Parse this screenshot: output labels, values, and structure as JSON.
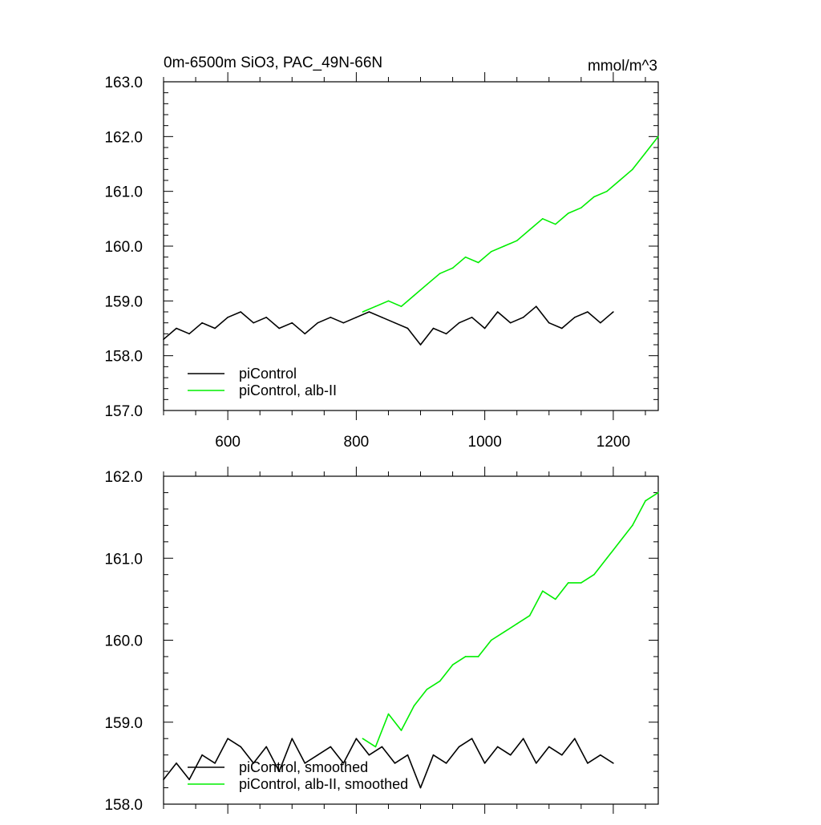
{
  "header": {
    "title": "0m-6500m SiO3, PAC_49N-66N",
    "units": "mmol/m^3"
  },
  "colors": {
    "control": "#000000",
    "experiment": "#00ee00",
    "axis": "#000000"
  },
  "chart_data": [
    {
      "type": "line",
      "panel": "top",
      "xlim": [
        500,
        1270
      ],
      "ylim": [
        157.0,
        163.0
      ],
      "xticks": [
        600,
        800,
        1000,
        1200
      ],
      "xtick_labels": [
        "600",
        "800",
        "1000",
        "1200"
      ],
      "yticks": [
        157.0,
        158.0,
        159.0,
        160.0,
        161.0,
        162.0,
        163.0
      ],
      "ytick_labels": [
        "157.0",
        "158.0",
        "159.0",
        "160.0",
        "161.0",
        "162.0",
        "163.0"
      ],
      "grid": false,
      "legend_position": "bottom-left",
      "series": [
        {
          "name": "piControl",
          "color": "#000000",
          "x": [
            500,
            520,
            540,
            560,
            580,
            600,
            620,
            640,
            660,
            680,
            700,
            720,
            740,
            760,
            780,
            800,
            820,
            840,
            860,
            880,
            900,
            920,
            940,
            960,
            980,
            1000,
            1020,
            1040,
            1060,
            1080,
            1100,
            1120,
            1140,
            1160,
            1180,
            1200
          ],
          "y": [
            158.3,
            158.5,
            158.4,
            158.6,
            158.5,
            158.7,
            158.8,
            158.6,
            158.7,
            158.5,
            158.6,
            158.4,
            158.6,
            158.7,
            158.6,
            158.7,
            158.8,
            158.7,
            158.6,
            158.5,
            158.2,
            158.5,
            158.4,
            158.6,
            158.7,
            158.5,
            158.8,
            158.6,
            158.7,
            158.9,
            158.6,
            158.5,
            158.7,
            158.8,
            158.6,
            158.8
          ]
        },
        {
          "name": "piControl, alb-II",
          "color": "#00ee00",
          "x": [
            810,
            830,
            850,
            870,
            890,
            910,
            930,
            950,
            970,
            990,
            1010,
            1030,
            1050,
            1070,
            1090,
            1110,
            1130,
            1150,
            1170,
            1190,
            1210,
            1230,
            1250,
            1270
          ],
          "y": [
            158.8,
            158.9,
            159.0,
            158.9,
            159.1,
            159.3,
            159.5,
            159.6,
            159.8,
            159.7,
            159.9,
            160.0,
            160.1,
            160.3,
            160.5,
            160.4,
            160.6,
            160.7,
            160.9,
            161.0,
            161.2,
            161.4,
            161.7,
            162.0
          ]
        }
      ]
    },
    {
      "type": "line",
      "panel": "bottom",
      "xlim": [
        500,
        1270
      ],
      "ylim": [
        158.0,
        162.0
      ],
      "xticks": [
        600,
        800,
        1000,
        1200
      ],
      "yticks": [
        158.0,
        159.0,
        160.0,
        161.0,
        162.0
      ],
      "ytick_labels": [
        "158.0",
        "159.0",
        "160.0",
        "161.0",
        "162.0"
      ],
      "grid": false,
      "legend_position": "bottom-left",
      "series": [
        {
          "name": "piControl, smoothed",
          "color": "#000000",
          "x": [
            500,
            520,
            540,
            560,
            580,
            600,
            620,
            640,
            660,
            680,
            700,
            720,
            740,
            760,
            780,
            800,
            820,
            840,
            860,
            880,
            900,
            920,
            940,
            960,
            980,
            1000,
            1020,
            1040,
            1060,
            1080,
            1100,
            1120,
            1140,
            1160,
            1180,
            1200
          ],
          "y": [
            158.3,
            158.5,
            158.3,
            158.6,
            158.5,
            158.8,
            158.7,
            158.5,
            158.7,
            158.4,
            158.8,
            158.5,
            158.6,
            158.7,
            158.5,
            158.8,
            158.6,
            158.7,
            158.5,
            158.6,
            158.2,
            158.6,
            158.5,
            158.7,
            158.8,
            158.5,
            158.7,
            158.6,
            158.8,
            158.5,
            158.7,
            158.6,
            158.8,
            158.5,
            158.6,
            158.5
          ]
        },
        {
          "name": "piControl, alb-II, smoothed",
          "color": "#00ee00",
          "x": [
            810,
            830,
            850,
            870,
            890,
            910,
            930,
            950,
            970,
            990,
            1010,
            1030,
            1050,
            1070,
            1090,
            1110,
            1130,
            1150,
            1170,
            1190,
            1210,
            1230,
            1250,
            1270
          ],
          "y": [
            158.8,
            158.7,
            159.1,
            158.9,
            159.2,
            159.4,
            159.5,
            159.7,
            159.8,
            159.8,
            160.0,
            160.1,
            160.2,
            160.3,
            160.6,
            160.5,
            160.7,
            160.7,
            160.8,
            161.0,
            161.2,
            161.4,
            161.7,
            161.8
          ]
        }
      ]
    }
  ]
}
